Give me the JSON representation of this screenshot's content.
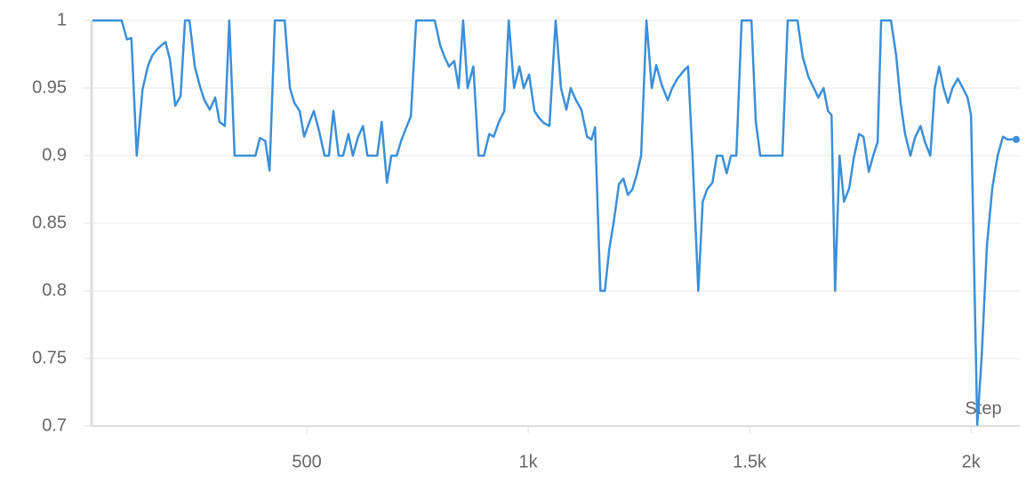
{
  "chart_data": {
    "type": "line",
    "x_label": "Step",
    "x": [
      16,
      38,
      60,
      82,
      94,
      104,
      116,
      129,
      141,
      151,
      163,
      173,
      181,
      191,
      203,
      215,
      225,
      235,
      247,
      259,
      269,
      281,
      293,
      303,
      315,
      325,
      337,
      349,
      361,
      371,
      384,
      394,
      406,
      416,
      428,
      440,
      450,
      462,
      472,
      484,
      494,
      506,
      516,
      528,
      540,
      550,
      560,
      572,
      582,
      594,
      604,
      616,
      627,
      637,
      649,
      659,
      669,
      681,
      691,
      703,
      713,
      725,
      735,
      747,
      761,
      775,
      789,
      801,
      811,
      821,
      833,
      843,
      853,
      863,
      876,
      888,
      900,
      912,
      922,
      934,
      946,
      956,
      968,
      980,
      990,
      1002,
      1014,
      1024,
      1036,
      1048,
      1062,
      1074,
      1086,
      1096,
      1108,
      1120,
      1133,
      1143,
      1151,
      1163,
      1173,
      1183,
      1193,
      1205,
      1215,
      1225,
      1235,
      1245,
      1255,
      1267,
      1279,
      1289,
      1301,
      1315,
      1325,
      1337,
      1349,
      1361,
      1371,
      1384,
      1394,
      1404,
      1416,
      1426,
      1438,
      1448,
      1458,
      1470,
      1482,
      1494,
      1504,
      1514,
      1524,
      1536,
      1548,
      1560,
      1574,
      1586,
      1598,
      1608,
      1620,
      1633,
      1645,
      1655,
      1667,
      1677,
      1685,
      1693,
      1703,
      1713,
      1725,
      1735,
      1747,
      1757,
      1769,
      1779,
      1789,
      1797,
      1809,
      1819,
      1831,
      1841,
      1851,
      1863,
      1873,
      1886,
      1896,
      1908,
      1918,
      1928,
      1938,
      1948,
      1958,
      1970,
      1980,
      1992,
      2000,
      2014,
      2024,
      2036,
      2048,
      2060,
      2072,
      2082,
      2102
    ],
    "series": [
      {
        "color": "#3b8fd9",
        "values": [
          1,
          1,
          1,
          1,
          0.986,
          0.987,
          0.9,
          0.949,
          0.966,
          0.974,
          0.979,
          0.982,
          0.984,
          0.971,
          0.937,
          0.944,
          1,
          1,
          0.966,
          0.951,
          0.941,
          0.934,
          0.943,
          0.925,
          0.922,
          1,
          0.9,
          0.9,
          0.9,
          0.9,
          0.9,
          0.913,
          0.911,
          0.889,
          1,
          1,
          1,
          0.95,
          0.939,
          0.933,
          0.914,
          0.925,
          0.933,
          0.918,
          0.9,
          0.9,
          0.933,
          0.9,
          0.9,
          0.916,
          0.9,
          0.914,
          0.922,
          0.9,
          0.9,
          0.9,
          0.925,
          0.88,
          0.9,
          0.9,
          0.911,
          0.921,
          0.929,
          1,
          1,
          1,
          1,
          0.982,
          0.973,
          0.966,
          0.97,
          0.95,
          1,
          0.95,
          0.966,
          0.9,
          0.9,
          0.916,
          0.914,
          0.925,
          0.933,
          1,
          0.95,
          0.966,
          0.95,
          0.96,
          0.933,
          0.928,
          0.924,
          0.922,
          1,
          0.95,
          0.934,
          0.95,
          0.941,
          0.934,
          0.914,
          0.912,
          0.921,
          0.8,
          0.8,
          0.831,
          0.851,
          0.879,
          0.883,
          0.871,
          0.875,
          0.886,
          0.9,
          1,
          0.95,
          0.967,
          0.953,
          0.941,
          0.95,
          0.957,
          0.962,
          0.966,
          0.9,
          0.8,
          0.866,
          0.875,
          0.88,
          0.9,
          0.9,
          0.887,
          0.9,
          0.9,
          1,
          1,
          1,
          0.925,
          0.9,
          0.9,
          0.9,
          0.9,
          0.9,
          1,
          1,
          1,
          0.973,
          0.958,
          0.95,
          0.943,
          0.95,
          0.933,
          0.93,
          0.8,
          0.9,
          0.866,
          0.876,
          0.898,
          0.916,
          0.914,
          0.888,
          0.9,
          0.91,
          1,
          1,
          1,
          0.974,
          0.939,
          0.916,
          0.9,
          0.913,
          0.922,
          0.91,
          0.9,
          0.95,
          0.966,
          0.95,
          0.939,
          0.95,
          0.957,
          0.951,
          0.943,
          0.93,
          0.701,
          0.752,
          0.834,
          0.876,
          0.9,
          0.914,
          0.912,
          0.912
        ]
      }
    ],
    "xlim": [
      14,
      2110
    ],
    "ylim": [
      0.7,
      1
    ],
    "xticks": [
      {
        "value": 500,
        "label": "500"
      },
      {
        "value": 1000,
        "label": "1k"
      },
      {
        "value": 1500,
        "label": "1.5k"
      },
      {
        "value": 2000,
        "label": "2k"
      }
    ],
    "yticks": [
      0.7,
      0.75,
      0.8,
      0.85,
      0.9,
      0.95,
      1
    ],
    "grid": true
  }
}
